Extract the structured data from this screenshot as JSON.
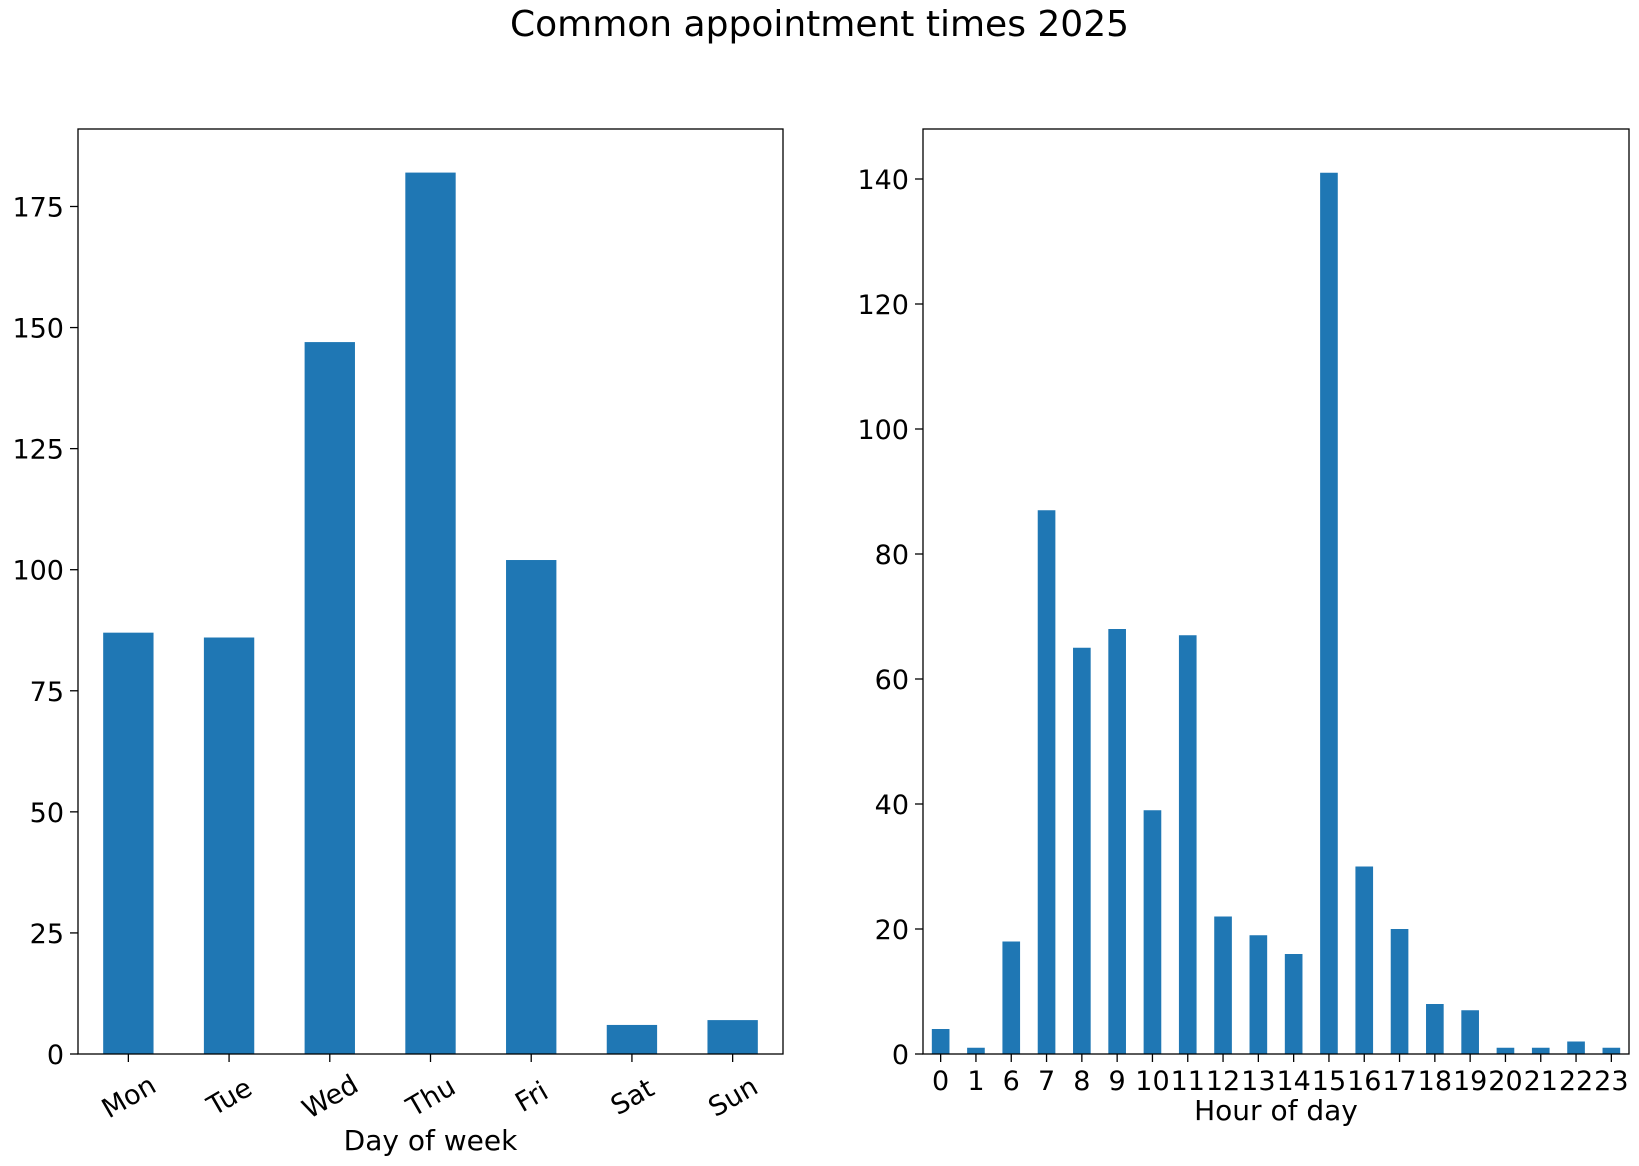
{
  "title": "Common appointment times 2025",
  "bar_color": "#1f77b4",
  "chart_data": [
    {
      "type": "bar",
      "xlabel": "Day of week",
      "ylabel": "",
      "categories": [
        "Mon",
        "Tue",
        "Wed",
        "Thu",
        "Fri",
        "Sat",
        "Sun"
      ],
      "values": [
        87,
        86,
        147,
        182,
        102,
        6,
        7
      ],
      "ylim": [
        0,
        191
      ],
      "yticks": [
        0,
        25,
        50,
        75,
        100,
        125,
        150,
        175
      ],
      "xtick_rotation": 30,
      "grid": false
    },
    {
      "type": "bar",
      "xlabel": "Hour of day",
      "ylabel": "",
      "categories": [
        "0",
        "1",
        "6",
        "7",
        "8",
        "9",
        "10",
        "11",
        "12",
        "13",
        "14",
        "15",
        "16",
        "17",
        "18",
        "19",
        "20",
        "21",
        "22",
        "23"
      ],
      "values": [
        4,
        1,
        18,
        87,
        65,
        68,
        39,
        67,
        22,
        19,
        16,
        141,
        30,
        20,
        8,
        7,
        1,
        1,
        2,
        1
      ],
      "ylim": [
        0,
        148
      ],
      "yticks": [
        0,
        20,
        40,
        60,
        80,
        100,
        120,
        140
      ],
      "xtick_rotation": 0,
      "grid": false
    }
  ]
}
